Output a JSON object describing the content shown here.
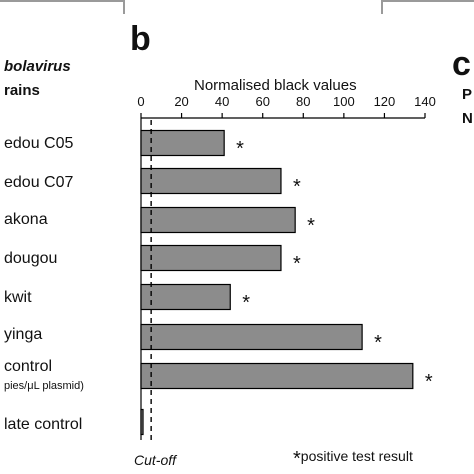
{
  "panels": {
    "b_letter": "b",
    "c_letter": "c",
    "c_line1": "P",
    "c_line2": "N"
  },
  "left_column": {
    "header_line1": "bolavirus",
    "header_line2": "rains",
    "labels": [
      "edou C05",
      "edou C07",
      "akona",
      "dougou",
      "kwit",
      "yinga",
      "control",
      "late control"
    ],
    "control_sublabel": "pies/μL plasmid)"
  },
  "chart_data": {
    "type": "bar",
    "orientation": "horizontal",
    "title": "",
    "xlabel": "Normalised black values",
    "xlim": [
      0,
      140
    ],
    "xticks": [
      0,
      20,
      40,
      60,
      80,
      100,
      120,
      140
    ],
    "categories": [
      "edou C05",
      "edou C07",
      "akona",
      "dougou",
      "kwit",
      "yinga",
      "control",
      "late control"
    ],
    "values": [
      41,
      69,
      76,
      69,
      44,
      109,
      134,
      1
    ],
    "significant": [
      true,
      true,
      true,
      true,
      true,
      true,
      true,
      false
    ],
    "cutoff": 5,
    "cutoff_label": "Cut-off",
    "marker": "*",
    "footnote": "positive test result",
    "bar_fill": "#8c8c8c",
    "bar_stroke": "#000000",
    "grid": false,
    "legend": "none"
  }
}
